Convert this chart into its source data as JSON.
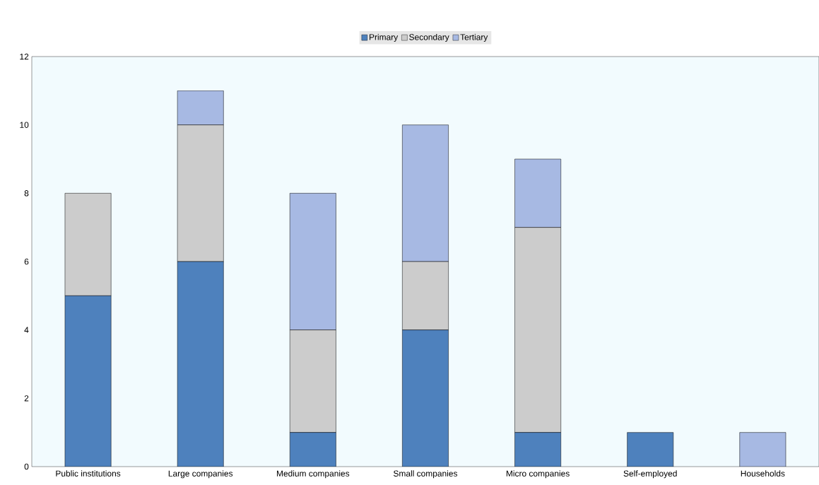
{
  "chart_data": {
    "type": "bar",
    "stacked": true,
    "categories": [
      "Public institutions",
      "Large companies",
      "Medium companies",
      "Small companies",
      "Micro companies",
      "Self-employed",
      "Households"
    ],
    "series": [
      {
        "name": "Primary",
        "color": "#4e81bd",
        "values": [
          5,
          6,
          1,
          4,
          1,
          1,
          0
        ]
      },
      {
        "name": "Secondary",
        "color": "#cccccc",
        "values": [
          3,
          4,
          3,
          2,
          6,
          0,
          0
        ]
      },
      {
        "name": "Tertiary",
        "color": "#a7b9e3",
        "values": [
          0,
          1,
          4,
          4,
          2,
          0,
          1
        ]
      }
    ],
    "ylim": [
      0,
      12
    ],
    "yticks": [
      0,
      2,
      4,
      6,
      8,
      10,
      12
    ],
    "grid": false,
    "legend": "top"
  }
}
